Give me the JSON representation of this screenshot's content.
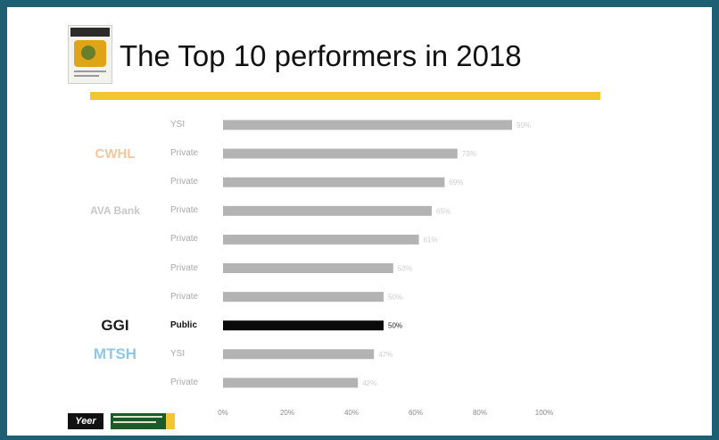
{
  "title": "The Top 10 performers in 2018",
  "colors": {
    "accent": "#f2c531",
    "bar": "#b3b3b3",
    "highlight_bar": "#0a0a0a",
    "frame": "#1f5f73"
  },
  "rows": [
    {
      "logo": "",
      "owner": "YSI",
      "highlight": false
    },
    {
      "logo": "CWHL",
      "owner": "Private",
      "highlight": false
    },
    {
      "logo": "",
      "owner": "Private",
      "highlight": false
    },
    {
      "logo": "AVA Bank",
      "owner": "Private",
      "highlight": false
    },
    {
      "logo": "",
      "owner": "Private",
      "highlight": false
    },
    {
      "logo": "",
      "owner": "Private",
      "highlight": false
    },
    {
      "logo": "",
      "owner": "Private",
      "highlight": false
    },
    {
      "logo": "GGI",
      "owner": "Public",
      "highlight": true
    },
    {
      "logo": "MTSH",
      "owner": "YSI",
      "highlight": false
    },
    {
      "logo": "",
      "owner": "Private",
      "highlight": false
    }
  ],
  "brand": {
    "text": "Yeer"
  },
  "chart_data": {
    "type": "bar",
    "orientation": "horizontal",
    "title": "The Top 10 performers in 2018",
    "categories": [
      "YSI",
      "Private",
      "Private",
      "Private",
      "Private",
      "Private",
      "Private",
      "Public",
      "YSI",
      "Private"
    ],
    "values": [
      90,
      73,
      69,
      65,
      61,
      53,
      50,
      50,
      47,
      42
    ],
    "value_labels": [
      "90%",
      "73%",
      "69%",
      "65%",
      "61%",
      "53%",
      "50%",
      "50%",
      "47%",
      "42%"
    ],
    "highlight_index": 7,
    "xlim": [
      0,
      100
    ],
    "xticks": [
      0,
      20,
      40,
      60,
      80,
      100
    ],
    "xtick_labels": [
      "0%",
      "20%",
      "40%",
      "60%",
      "80%",
      "100%"
    ],
    "grid": false,
    "legend": "none"
  }
}
